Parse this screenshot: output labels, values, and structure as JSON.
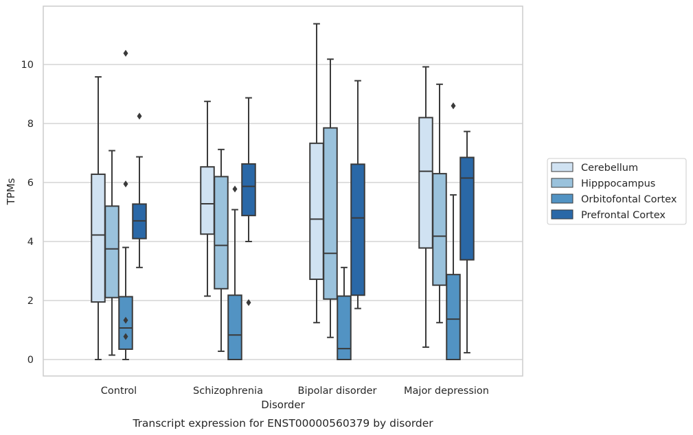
{
  "chart_data": {
    "type": "box",
    "title": "Transcript expression for ENST00000560379 by disorder",
    "xlabel": "Disorder",
    "ylabel": "TPMs",
    "ylim": [
      -0.55,
      12.0
    ],
    "yticks": [
      0,
      2,
      4,
      6,
      8,
      10
    ],
    "grid": true,
    "legend_position": "right",
    "categories": [
      "Control",
      "Schizophrenia",
      "Bipolar disorder",
      "Major depression"
    ],
    "series": [
      {
        "name": "Cerebellum",
        "color": "#d0e2f2",
        "boxes": [
          {
            "whisker_low": 0.0,
            "q1": 1.95,
            "median": 4.22,
            "q3": 6.28,
            "whisker_high": 9.58,
            "outliers": []
          },
          {
            "whisker_low": 2.15,
            "q1": 4.25,
            "median": 5.28,
            "q3": 6.53,
            "whisker_high": 8.75,
            "outliers": []
          },
          {
            "whisker_low": 1.25,
            "q1": 2.72,
            "median": 4.76,
            "q3": 7.33,
            "whisker_high": 11.38,
            "outliers": []
          },
          {
            "whisker_low": 0.42,
            "q1": 3.78,
            "median": 6.38,
            "q3": 8.2,
            "whisker_high": 9.92,
            "outliers": []
          }
        ]
      },
      {
        "name": "Hipppocampus",
        "color": "#9ac2dc",
        "boxes": [
          {
            "whisker_low": 0.15,
            "q1": 2.1,
            "median": 3.75,
            "q3": 5.2,
            "whisker_high": 7.08,
            "outliers": []
          },
          {
            "whisker_low": 0.28,
            "q1": 2.4,
            "median": 3.87,
            "q3": 6.2,
            "whisker_high": 7.12,
            "outliers": []
          },
          {
            "whisker_low": 0.75,
            "q1": 2.05,
            "median": 3.6,
            "q3": 7.85,
            "whisker_high": 10.18,
            "outliers": []
          },
          {
            "whisker_low": 1.25,
            "q1": 2.52,
            "median": 4.18,
            "q3": 6.3,
            "whisker_high": 9.33,
            "outliers": []
          }
        ]
      },
      {
        "name": "Orbitofontal Cortex",
        "color": "#5293c3",
        "boxes": [
          {
            "whisker_low": 0.0,
            "q1": 0.35,
            "median": 1.07,
            "q3": 2.13,
            "whisker_high": 3.8,
            "outliers": [
              10.38,
              5.95,
              1.33,
              0.78
            ]
          },
          {
            "whisker_low": 0.0,
            "q1": 0.0,
            "median": 0.83,
            "q3": 2.18,
            "whisker_high": 5.08,
            "outliers": [
              5.78
            ]
          },
          {
            "whisker_low": 0.0,
            "q1": 0.0,
            "median": 0.37,
            "q3": 2.15,
            "whisker_high": 3.12,
            "outliers": []
          },
          {
            "whisker_low": 0.0,
            "q1": 0.0,
            "median": 1.37,
            "q3": 2.88,
            "whisker_high": 5.58,
            "outliers": [
              8.6
            ]
          }
        ]
      },
      {
        "name": "Prefrontal Cortex",
        "color": "#2a68a7",
        "boxes": [
          {
            "whisker_low": 3.12,
            "q1": 4.1,
            "median": 4.7,
            "q3": 5.27,
            "whisker_high": 6.87,
            "outliers": [
              8.25
            ]
          },
          {
            "whisker_low": 4.0,
            "q1": 4.88,
            "median": 5.87,
            "q3": 6.63,
            "whisker_high": 8.87,
            "outliers": [
              1.93
            ]
          },
          {
            "whisker_low": 1.73,
            "q1": 2.18,
            "median": 4.8,
            "q3": 6.62,
            "whisker_high": 9.45,
            "outliers": []
          },
          {
            "whisker_low": 0.23,
            "q1": 3.38,
            "median": 6.15,
            "q3": 6.85,
            "whisker_high": 7.73,
            "outliers": []
          }
        ]
      }
    ]
  }
}
